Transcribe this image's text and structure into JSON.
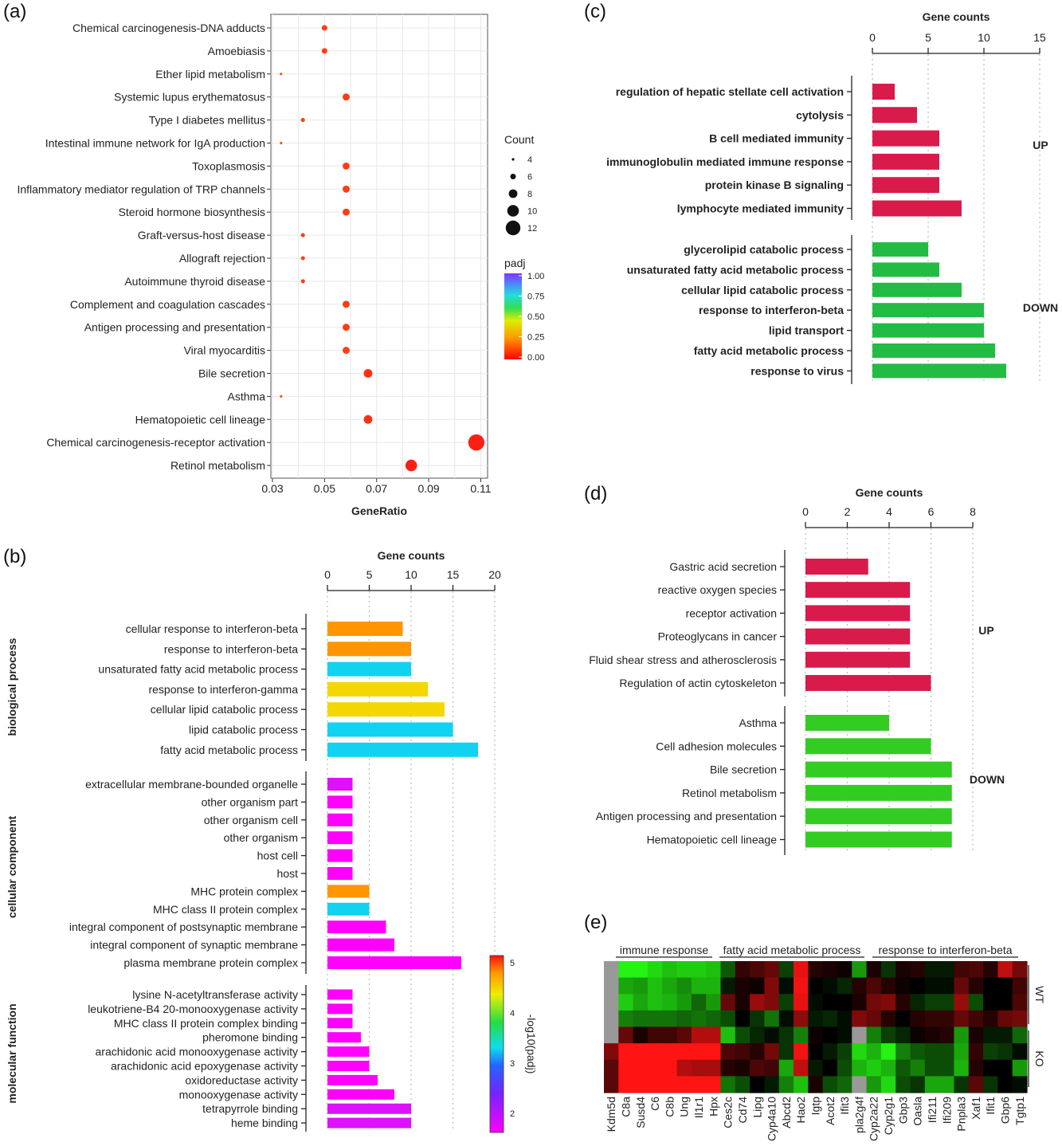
{
  "panels": [
    "(a)",
    "(b)",
    "(c)",
    "(d)",
    "(e)"
  ],
  "chart_data": [
    {
      "panel": "(a)",
      "type": "scatter",
      "xlabel": "GeneRatio",
      "xlim": [
        0.03,
        0.112
      ],
      "xticks": [
        "0.03",
        "0.05",
        "0.07",
        "0.09",
        "0.11"
      ],
      "categories": [
        "Chemical carcinogenesis-DNA adducts",
        "Amoebiasis",
        "Ether lipid metabolism",
        "Systemic lupus erythematosus",
        "Type I diabetes mellitus",
        "Intestinal immune network for IgA production",
        "Toxoplasmosis",
        "Inflammatory mediator regulation of TRP channels",
        "Steroid hormone biosynthesis",
        "Graft-versus-host disease",
        "Allograft rejection",
        "Autoimmune thyroid disease",
        "Complement and coagulation cascades",
        "Antigen processing and presentation",
        "Viral myocarditis",
        "Bile secretion",
        "Asthma",
        "Hematopoietic cell lineage",
        "Chemical carcinogenesis-receptor activation",
        "Retinol metabolism"
      ],
      "x": [
        0.05,
        0.05,
        0.0333,
        0.0583,
        0.0417,
        0.0333,
        0.0583,
        0.0583,
        0.0583,
        0.0417,
        0.0417,
        0.0417,
        0.0583,
        0.0583,
        0.0583,
        0.0667,
        0.0333,
        0.0667,
        0.1083,
        0.0833
      ],
      "count": [
        6,
        6,
        4,
        7,
        5,
        4,
        7,
        7,
        7,
        5,
        5,
        5,
        7,
        7,
        7,
        8,
        4,
        8,
        13,
        10
      ],
      "padj": [
        0.02,
        0.02,
        0.03,
        0.02,
        0.02,
        0.03,
        0.02,
        0.02,
        0.02,
        0.02,
        0.02,
        0.02,
        0.02,
        0.02,
        0.02,
        0.01,
        0.03,
        0.01,
        0.0,
        0.0
      ],
      "legend_count": {
        "title": "Count",
        "values": [
          "4",
          "6",
          "8",
          "10",
          "12"
        ]
      },
      "legend_color": {
        "title": "padj",
        "ticks": [
          "1.00",
          "0.75",
          "0.50",
          "0.25",
          "0.00"
        ]
      },
      "grid": true
    },
    {
      "panel": "(b)",
      "type": "bar",
      "title": "Gene counts",
      "xticks": [
        "0",
        "5",
        "10",
        "15",
        "20"
      ],
      "xlim": [
        0,
        20
      ],
      "groups": [
        {
          "name": "biological process",
          "categories": [
            "cellular response to interferon-beta",
            "response to interferon-beta",
            "unsaturated fatty acid metabolic process",
            "response to interferon-gamma",
            "cellular lipid catabolic process",
            "lipid catabolic process",
            "fatty acid metabolic process"
          ],
          "values": [
            9,
            10,
            10,
            12,
            14,
            15,
            18
          ],
          "neglog10padj": [
            4.2,
            4.2,
            3.1,
            4.6,
            4.6,
            3.1,
            3.1
          ]
        },
        {
          "name": "cellular component",
          "categories": [
            "extracellular membrane-bounded organelle",
            "other organism part",
            "other organism cell",
            "other organism",
            "host cell",
            "host",
            "MHC protein complex",
            "MHC class II protein complex",
            "integral component of postsynaptic membrane",
            "integral component of synaptic membrane",
            "plasma membrane protein complex"
          ],
          "values": [
            3,
            3,
            3,
            3,
            3,
            3,
            5,
            5,
            7,
            8,
            16
          ],
          "neglog10padj": [
            1.7,
            1.5,
            1.5,
            1.5,
            1.5,
            1.5,
            4.2,
            3.1,
            1.5,
            1.5,
            1.5
          ]
        },
        {
          "name": "molecular function",
          "categories": [
            "lysine N-acetyltransferase activity",
            "leukotriene-B4 20-monooxygenase activity",
            "MHC class II protein complex binding",
            "pheromone binding",
            "arachidonic acid monooxygenase activity",
            "arachidonic acid epoxygenase activity",
            "oxidoreductase activity",
            "monooxygenase activity",
            "tetrapyrrole binding",
            "heme binding"
          ],
          "values": [
            3,
            3,
            3,
            4,
            5,
            5,
            6,
            8,
            10,
            10
          ],
          "neglog10padj": [
            1.5,
            1.5,
            1.5,
            1.5,
            1.5,
            1.5,
            1.5,
            1.5,
            1.7,
            1.7
          ]
        }
      ],
      "colorbar": {
        "title": "-log10(padj)",
        "ticks": [
          "5",
          "4",
          "3",
          "2"
        ],
        "range": [
          1.5,
          5.2
        ]
      }
    },
    {
      "panel": "(c)",
      "type": "bar",
      "title": "Gene counts",
      "xticks": [
        "0",
        "5",
        "10",
        "15"
      ],
      "xlim": [
        0,
        15
      ],
      "groups": [
        {
          "name": "UP",
          "color": "#d81b4a",
          "categories": [
            "regulation of hepatic stellate cell activation",
            "cytolysis",
            "B cell mediated immunity",
            "immunoglobulin mediated immune response",
            "protein kinase B signaling",
            "lymphocyte mediated immunity"
          ],
          "values": [
            2,
            4,
            6,
            6,
            6,
            8
          ]
        },
        {
          "name": "DOWN",
          "color": "#22bb44",
          "categories": [
            "glycerolipid catabolic process",
            "unsaturated fatty acid metabolic process",
            "cellular lipid catabolic process",
            "response to interferon-beta",
            "lipid transport",
            "fatty acid metabolic process",
            "response to virus"
          ],
          "values": [
            5,
            6,
            8,
            10,
            10,
            11,
            12
          ]
        }
      ]
    },
    {
      "panel": "(d)",
      "type": "bar",
      "title": "Gene counts",
      "xticks": [
        "0",
        "2",
        "4",
        "6",
        "8"
      ],
      "xlim": [
        0,
        8
      ],
      "groups": [
        {
          "name": "UP",
          "color": "#d81b4a",
          "categories": [
            "Gastric acid secretion",
            "reactive oxygen species",
            "receptor activation",
            "Proteoglycans in cancer",
            "Fluid shear stress and atherosclerosis",
            "Regulation of actin cytoskeleton"
          ],
          "values": [
            3,
            5,
            5,
            5,
            5,
            6
          ]
        },
        {
          "name": "DOWN",
          "color": "#33cc22",
          "categories": [
            "Asthma",
            "Cell adhesion molecules",
            "Bile secretion",
            "Retinol metabolism",
            "Antigen processing and presentation",
            "Hematopoietic cell lineage"
          ],
          "values": [
            4,
            6,
            7,
            7,
            7,
            7
          ]
        }
      ]
    },
    {
      "panel": "(e)",
      "type": "heatmap",
      "column_groups": [
        {
          "name": "immune response",
          "span": 6
        },
        {
          "name": "fatty acid metabolic process",
          "span": 7
        },
        {
          "name": "response to interferon-beta",
          "span": 10
        }
      ],
      "genes": [
        "Kdm5d",
        "C8a",
        "Susd4",
        "C6",
        "C8b",
        "Ung",
        "Il1r1",
        "Hpx",
        "Ces2c",
        "Cd74",
        "Lipg",
        "Cyp4a10",
        "Abcd2",
        "Hao2",
        "Igtp",
        "Acot2",
        "Ifit3",
        "pla2g4f",
        "Cyp2a22",
        "Cyp2g1",
        "Gbp3",
        "Oasla",
        "Ifi211",
        "Ifi209",
        "Pnpla3",
        "Xaf1",
        "Ifit1",
        "Gbp6",
        "Tgtp1"
      ],
      "row_groups": [
        {
          "name": "WT",
          "rows": 4
        },
        {
          "name": "KO",
          "rows": 4
        }
      ],
      "values": [
        [
          null,
          1.9,
          1.9,
          1.7,
          1.5,
          1.6,
          1.6,
          1.5,
          0.7,
          -0.4,
          -0.6,
          -0.8,
          0.5,
          -1.8,
          -0.3,
          -0.2,
          -0.1,
          1.2,
          -0.2,
          0.4,
          -0.2,
          -0.3,
          0.2,
          0.2,
          -0.5,
          -0.6,
          -0.3,
          -1.5,
          -0.9
        ],
        [
          null,
          1.3,
          1.2,
          1.5,
          1.3,
          1.1,
          1.4,
          1.4,
          0.2,
          -0.2,
          -0.1,
          -1.0,
          0.1,
          -1.9,
          0.0,
          0.1,
          0.3,
          -0.3,
          -0.6,
          -0.3,
          -0.1,
          0.0,
          0.1,
          0.1,
          -0.8,
          -0.3,
          0.0,
          0.0,
          -0.5
        ],
        [
          null,
          1.6,
          1.3,
          1.5,
          1.4,
          1.2,
          0.8,
          1.2,
          -0.8,
          -0.2,
          -1.2,
          -1.0,
          0.5,
          -1.8,
          0.1,
          0.0,
          0.0,
          -0.2,
          -0.9,
          -1.0,
          -0.3,
          0.3,
          0.5,
          0.5,
          -1.2,
          0.6,
          0.0,
          0.0,
          -0.6
        ],
        [
          null,
          1.0,
          0.9,
          0.9,
          0.9,
          0.8,
          0.9,
          0.8,
          0.6,
          0.0,
          0.4,
          0.9,
          0.1,
          -1.1,
          0.2,
          0.3,
          0.1,
          -1.0,
          -0.8,
          -0.3,
          0.0,
          -0.3,
          -0.4,
          -0.4,
          -0.8,
          -0.5,
          -0.3,
          -0.8,
          -0.9
        ],
        [
          null,
          -0.8,
          -0.2,
          -0.5,
          -0.5,
          -0.7,
          -1.4,
          -1.4,
          1.5,
          0.6,
          0.3,
          0.1,
          0.4,
          1.0,
          -0.1,
          0.0,
          0.1,
          null,
          1.0,
          0.5,
          0.3,
          -0.1,
          -0.2,
          -0.3,
          1.2,
          -0.2,
          0.2,
          0.2,
          0.8
        ],
        [
          -1.0,
          -2.0,
          -2.0,
          -2.0,
          -2.0,
          -2.0,
          -2.0,
          -2.0,
          -0.6,
          -0.5,
          -0.3,
          -0.9,
          0.4,
          -1.9,
          0.0,
          0.2,
          0.5,
          1.7,
          1.4,
          1.9,
          1.0,
          0.7,
          0.6,
          0.6,
          1.3,
          -0.4,
          0.5,
          0.4,
          0.1
        ],
        [
          -0.7,
          -2.0,
          -2.0,
          -2.0,
          -2.0,
          -1.4,
          -1.3,
          -1.3,
          -0.3,
          -0.2,
          -0.6,
          -0.5,
          1.3,
          -1.5,
          0.2,
          0.0,
          0.6,
          1.4,
          1.6,
          1.4,
          0.7,
          1.0,
          0.6,
          0.6,
          1.4,
          -0.3,
          0.0,
          0.0,
          1.2
        ],
        [
          -0.7,
          -2.0,
          -2.0,
          -2.0,
          -2.0,
          -2.0,
          -2.0,
          -2.0,
          0.9,
          0.6,
          0.0,
          0.2,
          1.0,
          1.5,
          -0.2,
          0.6,
          0.8,
          null,
          1.2,
          1.7,
          0.6,
          0.4,
          1.3,
          1.3,
          0.4,
          -0.7,
          0.4,
          0.0,
          0.1
        ]
      ]
    }
  ]
}
